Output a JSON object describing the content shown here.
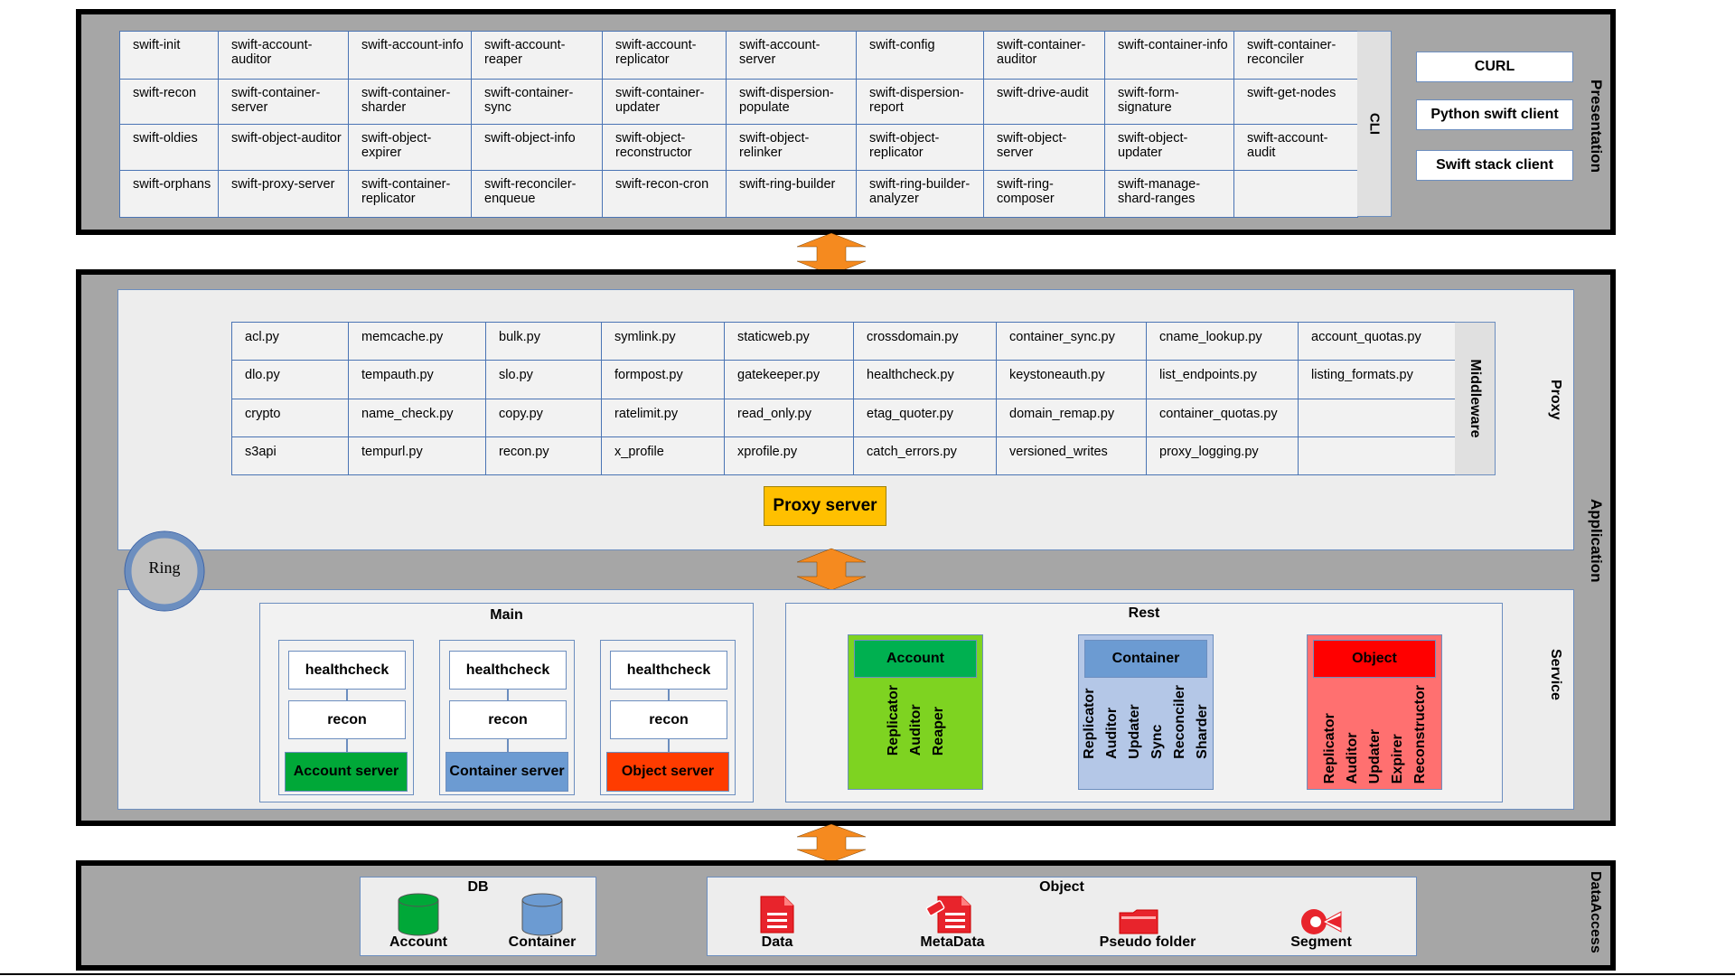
{
  "layers": {
    "presentation": "Presentation",
    "application": "Application",
    "data_access": "DataAccess"
  },
  "cli": {
    "label": "CLI",
    "rows": [
      [
        "swift-init",
        "swift-account-auditor",
        "swift-account-info",
        "swift-account-reaper",
        "swift-account-replicator",
        "swift-account-server",
        "swift-config",
        "swift-container-auditor",
        "swift-container-info",
        "swift-container-reconciler"
      ],
      [
        "swift-recon",
        "swift-container-server",
        "swift-container-sharder",
        "swift-container-sync",
        "swift-container-updater",
        "swift-dispersion-populate",
        "swift-dispersion-report",
        "swift-drive-audit",
        "swift-form-signature",
        "swift-get-nodes"
      ],
      [
        "swift-oldies",
        "swift-object-auditor",
        "swift-object-expirer",
        "swift-object-info",
        "swift-object-reconstructor",
        "swift-object-relinker",
        "swift-object-replicator",
        "swift-object-server",
        "swift-object-updater",
        "swift-account-audit"
      ],
      [
        "swift-orphans",
        "swift-proxy-server",
        "swift-container-replicator",
        "swift-reconciler-enqueue",
        "swift-recon-cron",
        "swift-ring-builder",
        "swift-ring-builder-analyzer",
        "swift-ring-composer",
        "swift-manage-shard-ranges",
        ""
      ]
    ]
  },
  "clients": [
    "CURL",
    "Python swift client",
    "Swift stack client"
  ],
  "proxy": {
    "section_label": "Proxy",
    "middleware_label": "Middleware",
    "server_label": "Proxy server",
    "server_color": "#ffc000",
    "rows": [
      [
        "acl.py",
        "memcache.py",
        "bulk.py",
        "symlink.py",
        "staticweb.py",
        "crossdomain.py",
        "container_sync.py",
        "cname_lookup.py",
        "account_quotas.py"
      ],
      [
        "dlo.py",
        "tempauth.py",
        "slo.py",
        "formpost.py",
        "gatekeeper.py",
        "healthcheck.py",
        "keystoneauth.py",
        "list_endpoints.py",
        "listing_formats.py"
      ],
      [
        "crypto",
        "name_check.py",
        "copy.py",
        "ratelimit.py",
        "read_only.py",
        "etag_quoter.py",
        "domain_remap.py",
        "container_quotas.py",
        ""
      ],
      [
        "s3api",
        "tempurl.py",
        "recon.py",
        "x_profile",
        "xprofile.py",
        "catch_errors.py",
        "versioned_writes",
        "proxy_logging.py",
        ""
      ]
    ]
  },
  "ring": "Ring",
  "service": {
    "section_label": "Service",
    "main": {
      "title": "Main",
      "columns": [
        {
          "items": [
            "healthcheck",
            "recon"
          ],
          "server": "Account server",
          "color": "#00a838"
        },
        {
          "items": [
            "healthcheck",
            "recon"
          ],
          "server": "Container server",
          "color": "#6c9bd2"
        },
        {
          "items": [
            "healthcheck",
            "recon"
          ],
          "server": "Object server",
          "color": "#ff3c00"
        }
      ]
    },
    "rest": {
      "title": "Rest",
      "groups": [
        {
          "name": "Account",
          "header_color": "#00b050",
          "body_color": "#7ed321",
          "items": [
            "Replicator",
            "Auditor",
            "Reaper"
          ]
        },
        {
          "name": "Container",
          "header_color": "#6c9bd2",
          "body_color": "#b4c7e7",
          "items": [
            "Replicator",
            "Auditor",
            "Updater",
            "Sync",
            "Reconciler",
            "Sharder"
          ]
        },
        {
          "name": "Object",
          "header_color": "#ff0000",
          "body_color": "#ff7070",
          "items": [
            "Replicator",
            "Auditor",
            "Updater",
            "Expirer",
            "Reconstructor"
          ]
        }
      ]
    }
  },
  "data_access": {
    "db": {
      "title": "DB",
      "items": [
        {
          "label": "Account",
          "color": "#00a838"
        },
        {
          "label": "Container",
          "color": "#6c9bd2"
        }
      ]
    },
    "object": {
      "title": "Object",
      "items": [
        "Data",
        "MetaData",
        "Pseudo folder",
        "Segment"
      ]
    }
  },
  "colors": {
    "arrow": "#f58a1f",
    "layer_bg": "#a6a6a6",
    "panel_bg": "#ededed"
  }
}
